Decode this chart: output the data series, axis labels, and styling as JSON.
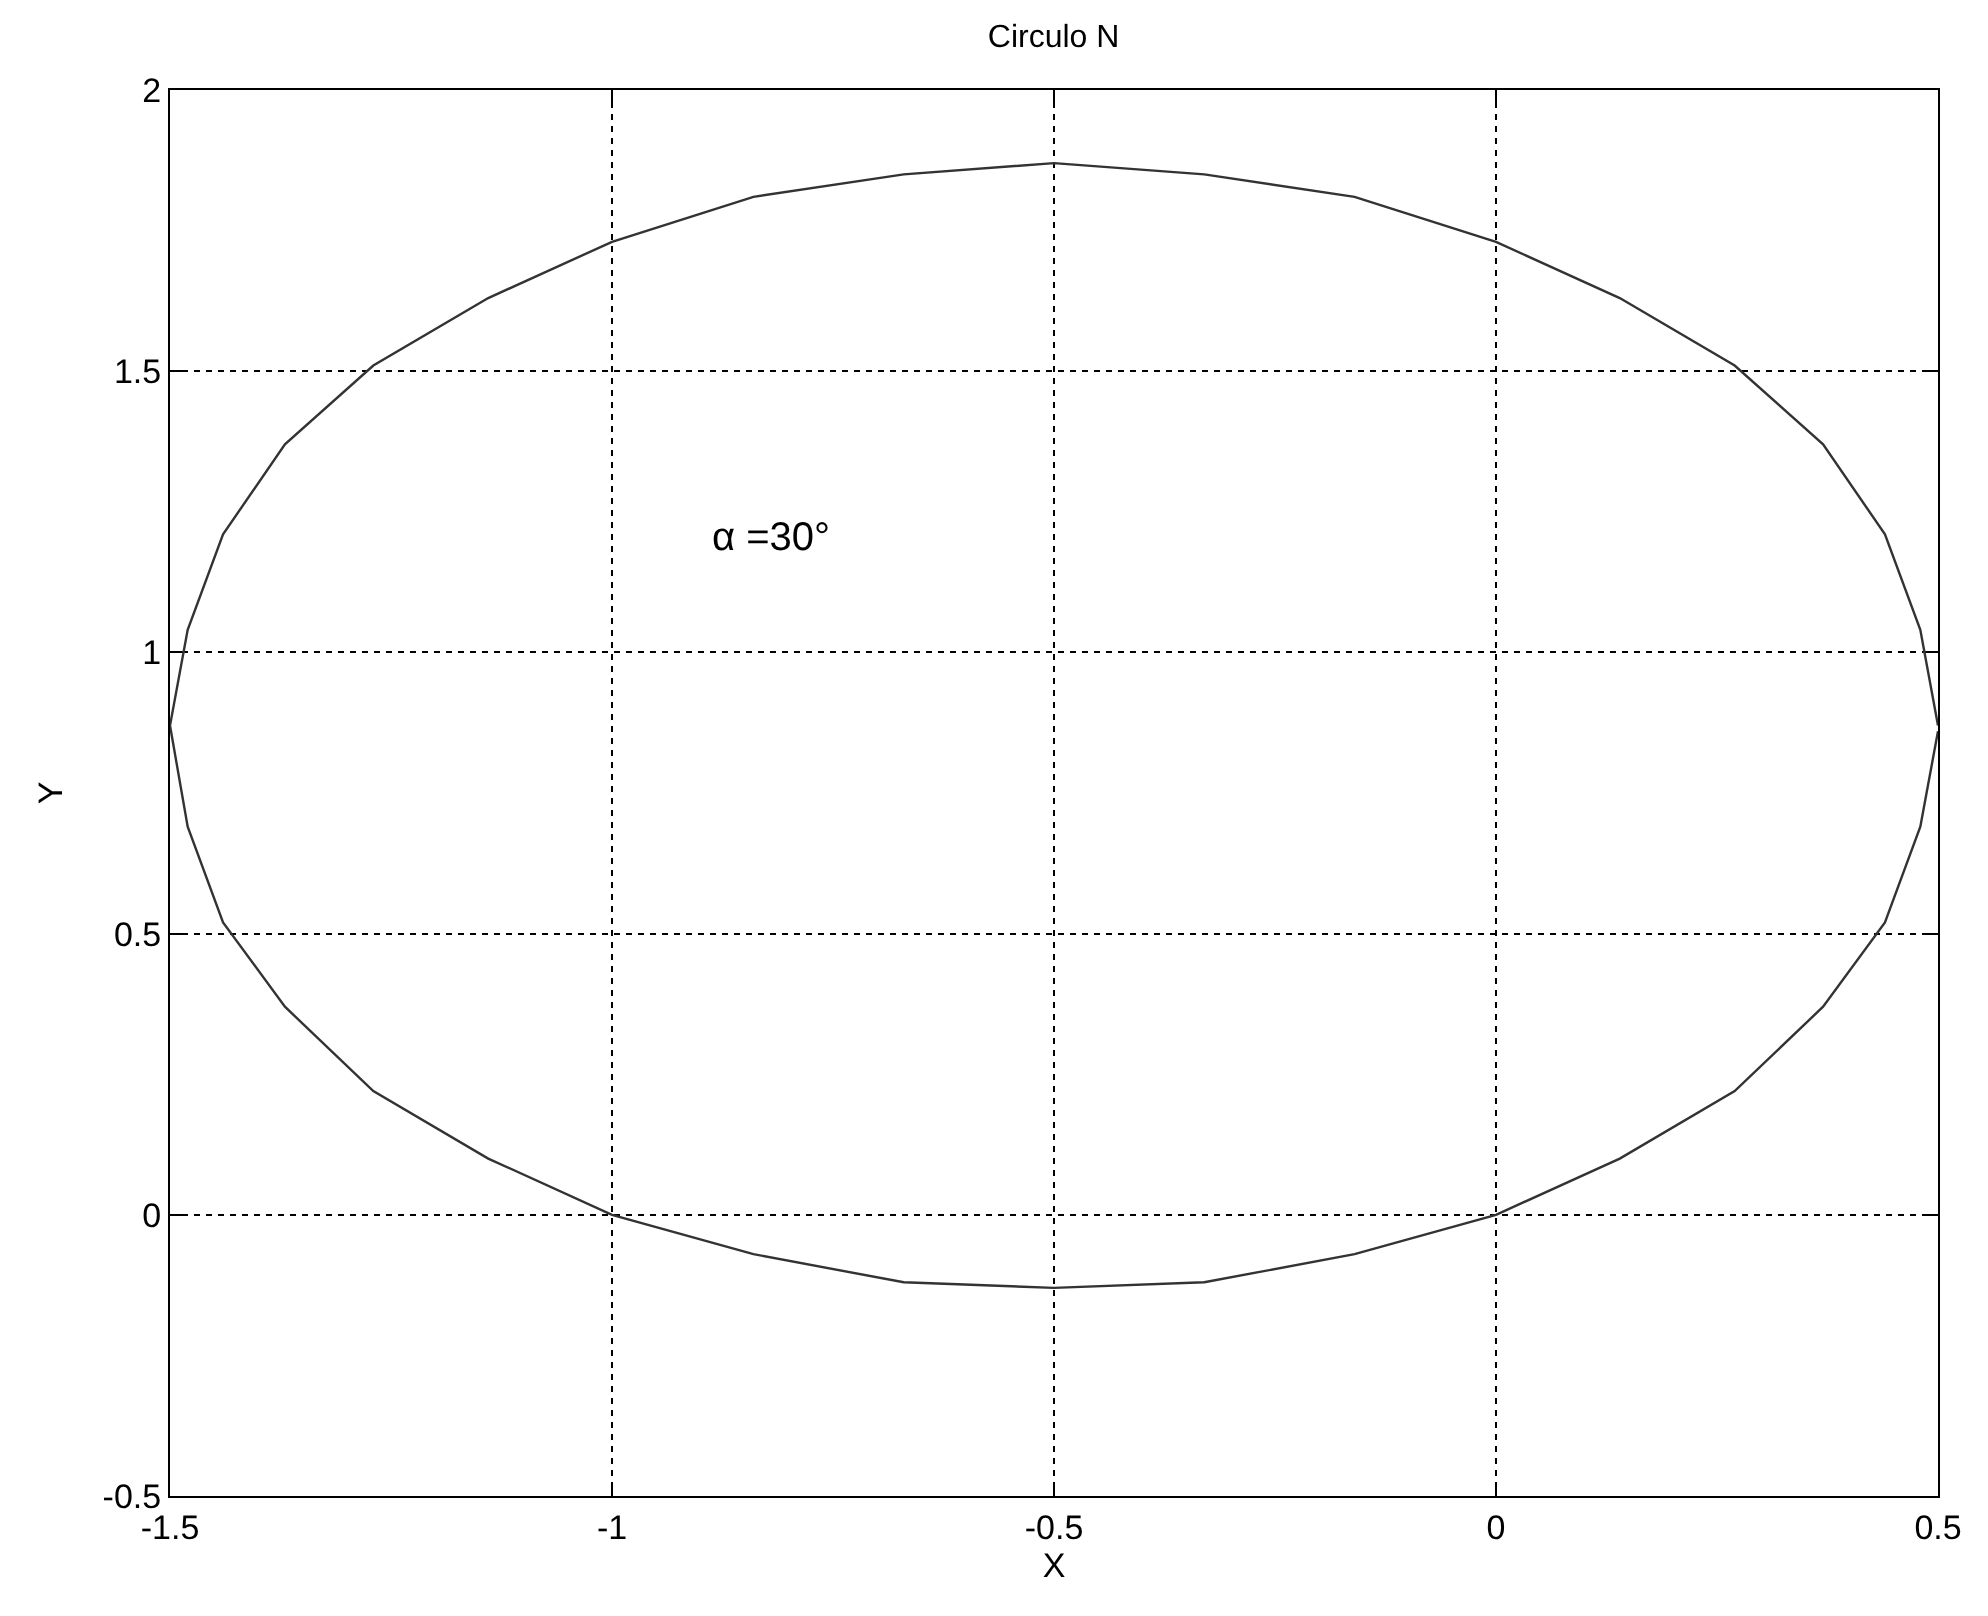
{
  "chart_data": {
    "type": "line",
    "title": "Circulo N",
    "xlabel": "X",
    "ylabel": "Y",
    "annotations": [
      "α =30°"
    ],
    "series": [
      {
        "color": "#333333",
        "x": [
          0.5,
          0.48,
          0.44,
          0.37,
          0.27,
          0.14,
          0.0,
          -0.16,
          -0.33,
          -0.5,
          -0.67,
          -0.84,
          -1.0,
          -1.14,
          -1.27,
          -1.37,
          -1.44,
          -1.48,
          -1.5,
          -1.48,
          -1.44,
          -1.37,
          -1.27,
          -1.14,
          -1.0,
          -0.84,
          -0.67,
          -0.5,
          -0.33,
          -0.16,
          0.0,
          0.14,
          0.27,
          0.37,
          0.44,
          0.48,
          0.5
        ],
        "values": [
          0.87,
          1.04,
          1.21,
          1.37,
          1.51,
          1.63,
          1.73,
          1.81,
          1.85,
          1.87,
          1.85,
          1.81,
          1.73,
          1.63,
          1.51,
          1.37,
          1.21,
          1.04,
          0.87,
          0.69,
          0.52,
          0.37,
          0.22,
          0.1,
          0.0,
          -0.07,
          -0.12,
          -0.13,
          -0.12,
          -0.07,
          0.0,
          0.1,
          0.22,
          0.37,
          0.52,
          0.69,
          0.86
        ]
      }
    ],
    "xlim": [
      -1.5,
      0.5
    ],
    "xticks": [
      -1.5,
      -1,
      -0.5,
      0,
      0.5
    ],
    "ylim": [
      -0.5,
      2
    ],
    "yticks": [
      -0.5,
      0,
      0.5,
      1,
      1.5,
      2
    ],
    "grid": true,
    "line_style": "solid",
    "marker": "none"
  }
}
